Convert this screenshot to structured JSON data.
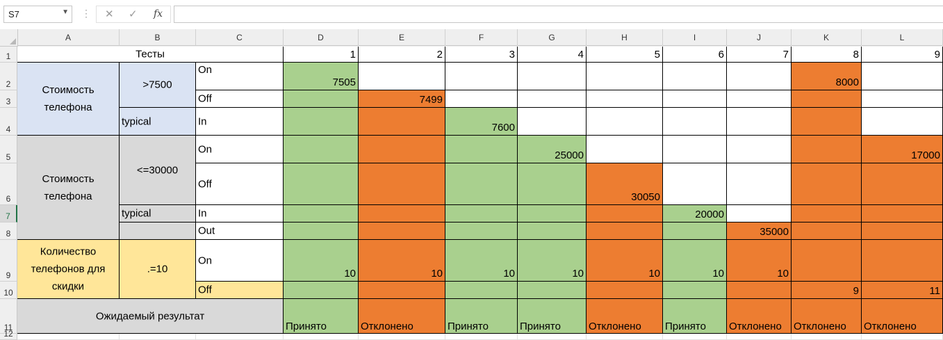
{
  "formula_bar": {
    "name_box": "S7",
    "cancel_icon": "✕",
    "enter_icon": "✓",
    "fx_label": "fx",
    "formula": ""
  },
  "columns": [
    "A",
    "B",
    "C",
    "D",
    "E",
    "F",
    "G",
    "H",
    "I",
    "J",
    "K",
    "L"
  ],
  "rows": [
    "1",
    "2",
    "3",
    "4",
    "5",
    "6",
    "7",
    "8",
    "9",
    "10",
    "11",
    "12"
  ],
  "selected_row": "7",
  "sheet": {
    "header_tests": "Тесты",
    "test_numbers": [
      "1",
      "2",
      "3",
      "4",
      "5",
      "6",
      "7",
      "8",
      "9"
    ],
    "group1": {
      "label": "Стоимость телефона",
      "cond_range": ">7500",
      "cond_typical": "typical",
      "on": "On",
      "off": "Off",
      "in": "In"
    },
    "group2": {
      "label": "Стоимость телефона",
      "cond_range": "<=30000",
      "cond_typical": "typical",
      "on": "On",
      "off": "Off",
      "in": "In",
      "out": "Out"
    },
    "group3": {
      "label": "Количество телефонов для скидки",
      "cond_range": ".=10",
      "on": "On",
      "off": "Off"
    },
    "values": {
      "D2": "7505",
      "E3": "7499",
      "F4": "7600",
      "G5": "25000",
      "H6": "30050",
      "I7": "20000",
      "J8": "35000",
      "K2": "8000",
      "L5": "17000",
      "D9": "10",
      "E9": "10",
      "F9": "10",
      "G9": "10",
      "H9": "10",
      "I9": "10",
      "J9": "10",
      "K10": "9",
      "L10": "11"
    },
    "expected_label": "Ожидаемый результат",
    "results": [
      "Принято",
      "Отклонено",
      "Принято",
      "Принято",
      "Отклонено",
      "Принято",
      "Отклонено",
      "Отклонено",
      "Отклонено"
    ]
  },
  "colors": {
    "green": "#a9d08e",
    "orange": "#ed7d31",
    "blue": "#dae3f3",
    "grey": "#d9d9d9",
    "yellow": "#ffe699",
    "excel_green": "#217346"
  }
}
